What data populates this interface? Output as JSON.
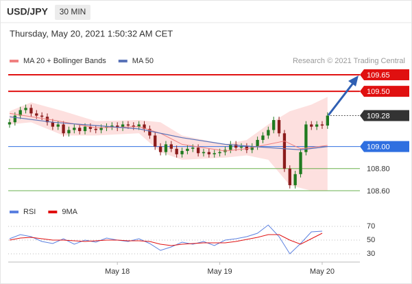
{
  "header": {
    "symbol": "USD/JPY",
    "interval": "30 MIN",
    "timestamp": "Thursday, May 20, 2021 1:50:32 AM CET"
  },
  "chart_data": [
    {
      "type": "candlestick",
      "credit": "Research © 2021 Trading Central",
      "up_color": "#1f7a1f",
      "down_color": "#8b1c1c",
      "x": [
        0,
        1,
        2,
        3,
        4,
        5,
        6,
        7,
        8,
        9,
        10,
        11,
        12,
        13,
        14,
        15,
        16,
        17,
        18,
        19,
        20,
        21,
        22,
        23,
        24,
        25,
        26,
        27,
        28,
        29,
        30,
        31,
        32,
        33,
        34,
        35,
        36,
        37,
        38,
        39,
        40,
        41,
        42,
        43,
        44,
        45,
        46,
        47,
        48,
        49,
        50,
        51,
        52,
        53,
        54,
        55,
        56,
        57,
        58,
        59
      ],
      "open": [
        109.2,
        109.22,
        109.28,
        109.33,
        109.35,
        109.3,
        109.28,
        109.27,
        109.22,
        109.18,
        109.2,
        109.12,
        109.15,
        109.17,
        109.14,
        109.18,
        109.16,
        109.15,
        109.17,
        109.18,
        109.19,
        109.17,
        109.2,
        109.19,
        109.18,
        109.2,
        109.16,
        109.1,
        109.0,
        108.95,
        109.02,
        108.98,
        108.93,
        108.96,
        108.98,
        108.99,
        108.94,
        108.95,
        108.93,
        108.94,
        108.95,
        108.97,
        109.02,
        108.99,
        109.0,
        108.97,
        109.0,
        109.06,
        109.1,
        109.15,
        109.24,
        109.12,
        108.8,
        108.65,
        108.75,
        108.95,
        109.2,
        109.18,
        109.2,
        109.19
      ],
      "high": [
        109.25,
        109.31,
        109.36,
        109.38,
        109.38,
        109.33,
        109.31,
        109.3,
        109.25,
        109.23,
        109.23,
        109.18,
        109.2,
        109.2,
        109.21,
        109.21,
        109.19,
        109.2,
        109.21,
        109.22,
        109.22,
        109.23,
        109.23,
        109.22,
        109.23,
        109.23,
        109.19,
        109.13,
        109.03,
        109.05,
        109.05,
        109.01,
        108.99,
        109.01,
        109.02,
        109.02,
        108.98,
        108.98,
        108.97,
        108.98,
        109.0,
        109.05,
        109.05,
        109.03,
        109.03,
        109.03,
        109.09,
        109.13,
        109.18,
        109.27,
        109.27,
        109.15,
        108.83,
        108.78,
        108.98,
        109.23,
        109.23,
        109.23,
        109.23,
        109.31
      ],
      "low": [
        109.17,
        109.19,
        109.25,
        109.3,
        109.27,
        109.25,
        109.24,
        109.19,
        109.15,
        109.15,
        109.09,
        109.09,
        109.12,
        109.11,
        109.11,
        109.13,
        109.12,
        109.12,
        109.14,
        109.15,
        109.14,
        109.14,
        109.16,
        109.15,
        109.15,
        109.13,
        109.07,
        108.97,
        108.92,
        108.92,
        108.95,
        108.9,
        108.9,
        108.93,
        108.95,
        108.91,
        108.91,
        108.9,
        108.9,
        108.91,
        108.92,
        108.94,
        108.96,
        108.96,
        108.94,
        108.94,
        108.97,
        109.03,
        109.07,
        109.12,
        109.09,
        108.77,
        108.62,
        108.62,
        108.72,
        108.92,
        109.15,
        109.15,
        109.16,
        109.16
      ],
      "close": [
        109.22,
        109.28,
        109.33,
        109.35,
        109.3,
        109.28,
        109.27,
        109.22,
        109.18,
        109.2,
        109.12,
        109.15,
        109.17,
        109.14,
        109.18,
        109.16,
        109.15,
        109.17,
        109.18,
        109.19,
        109.17,
        109.2,
        109.19,
        109.18,
        109.2,
        109.16,
        109.1,
        109.0,
        108.95,
        109.02,
        108.98,
        108.93,
        108.96,
        108.98,
        108.99,
        108.94,
        108.95,
        108.93,
        108.94,
        108.95,
        108.97,
        109.02,
        108.99,
        109.0,
        108.97,
        109.0,
        109.06,
        109.1,
        109.15,
        109.24,
        109.12,
        108.8,
        108.65,
        108.75,
        108.95,
        109.2,
        109.18,
        109.2,
        109.19,
        109.28
      ],
      "series": [
        {
          "name": "MA 20 + Bollinger Bands",
          "color": "#f08080",
          "x": [
            0,
            8,
            16,
            24,
            28,
            32,
            40,
            44,
            48,
            51,
            54,
            59
          ],
          "values": [
            109.3,
            109.24,
            109.17,
            109.18,
            109.12,
            109.02,
            108.96,
            108.98,
            109.02,
            109.05,
            108.98,
            109.01
          ],
          "band": {
            "color": "#fde0df",
            "x": [
              0,
              4,
              10,
              16,
              24,
              28,
              32,
              40,
              44,
              48,
              52,
              56,
              59
            ],
            "upper": [
              109.32,
              109.4,
              109.32,
              109.23,
              109.24,
              109.22,
              109.1,
              109.02,
              109.06,
              109.2,
              109.32,
              109.38,
              109.45
            ],
            "lower": [
              109.2,
              109.22,
              109.1,
              109.1,
              109.12,
              108.95,
              108.88,
              108.9,
              108.92,
              108.88,
              108.65,
              108.6,
              108.6
            ]
          }
        },
        {
          "name": "MA 50",
          "color": "#5a73b8",
          "x": [
            0,
            8,
            16,
            24,
            32,
            40,
            48,
            54,
            59
          ],
          "values": [
            109.27,
            109.22,
            109.19,
            109.16,
            109.08,
            109.02,
            108.99,
            108.97,
            109.0
          ]
        }
      ],
      "levels": [
        {
          "value": 109.65,
          "label": "109.65",
          "color": "#e01010",
          "line": "solid",
          "box": true
        },
        {
          "value": 109.5,
          "label": "109.50",
          "color": "#e01010",
          "line": "solid",
          "box": true
        },
        {
          "value": 109.28,
          "label": "109.28",
          "color": "#333333",
          "line": "dotted",
          "box": true
        },
        {
          "value": 109.0,
          "label": "109.00",
          "color": "#2f6fe0",
          "line": "solid",
          "box": true
        },
        {
          "value": 108.8,
          "label": "108.80",
          "color": "#6ab04c",
          "line": "solid",
          "box": false
        },
        {
          "value": 108.6,
          "label": "108.60",
          "color": "#6ab04c",
          "line": "solid",
          "box": false
        }
      ],
      "xlim": [
        -0.25,
        65
      ],
      "ylim": [
        108.6,
        109.65
      ]
    },
    {
      "type": "line",
      "series": [
        {
          "name": "RSI",
          "color": "#5b80e0",
          "x": [
            0,
            2,
            4,
            6,
            8,
            10,
            12,
            14,
            16,
            18,
            20,
            22,
            24,
            26,
            28,
            30,
            32,
            34,
            36,
            38,
            40,
            42,
            44,
            46,
            48,
            50,
            52,
            54,
            56,
            58
          ],
          "values": [
            52,
            58,
            55,
            48,
            45,
            52,
            44,
            50,
            47,
            53,
            50,
            48,
            52,
            45,
            35,
            40,
            47,
            44,
            48,
            42,
            50,
            52,
            55,
            60,
            72,
            55,
            30,
            45,
            62,
            63
          ]
        },
        {
          "name": "9MA",
          "color": "#e01010",
          "x": [
            0,
            2,
            4,
            6,
            8,
            10,
            12,
            14,
            16,
            18,
            20,
            22,
            24,
            26,
            28,
            30,
            32,
            34,
            36,
            38,
            40,
            42,
            44,
            46,
            48,
            50,
            52,
            54,
            56,
            58
          ],
          "values": [
            50,
            53,
            54,
            52,
            50,
            50,
            49,
            48,
            49,
            50,
            50,
            49,
            49,
            48,
            44,
            42,
            44,
            45,
            46,
            46,
            46,
            48,
            51,
            54,
            58,
            58,
            50,
            44,
            52,
            60
          ]
        }
      ],
      "xlim": [
        -0.25,
        65
      ],
      "ylim": [
        30,
        70
      ],
      "yticks": [
        30,
        50,
        70
      ],
      "xticks": [
        {
          "value": 20,
          "label": "May 18"
        },
        {
          "value": 39,
          "label": "May 19"
        },
        {
          "value": 58,
          "label": "May 20"
        }
      ]
    }
  ]
}
